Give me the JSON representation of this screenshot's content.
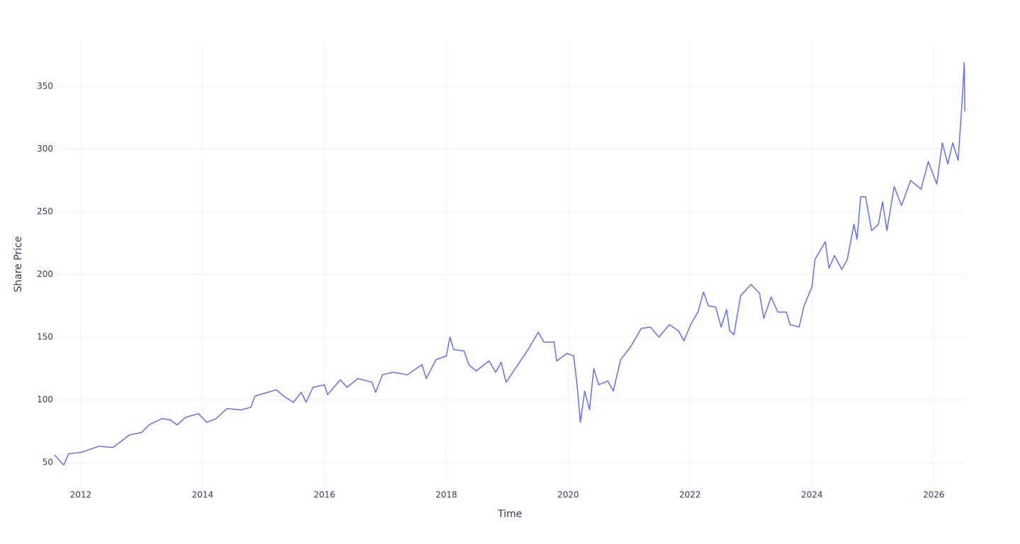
{
  "chart_data": {
    "type": "line",
    "x_label": "Time",
    "y_label": "Share Price",
    "xlim": [
      2011.57,
      2026.52
    ],
    "ylim": [
      30.2,
      386.7
    ],
    "xticks": [
      2012,
      2014,
      2016,
      2018,
      2020,
      2022,
      2024,
      2026
    ],
    "yticks": [
      50,
      100,
      150,
      200,
      250,
      300,
      350
    ],
    "grid": true,
    "series": [
      {
        "color": "#636efa",
        "x": [
          2011.57,
          2011.72,
          2011.8,
          2012.0,
          2012.3,
          2012.53,
          2012.8,
          2013.0,
          2013.12,
          2013.33,
          2013.47,
          2013.58,
          2013.72,
          2013.93,
          2014.07,
          2014.22,
          2014.4,
          2014.63,
          2014.79,
          2014.86,
          2015.21,
          2015.33,
          2015.49,
          2015.62,
          2015.7,
          2015.81,
          2016.0,
          2016.05,
          2016.26,
          2016.37,
          2016.55,
          2016.78,
          2016.84,
          2016.95,
          2017.13,
          2017.36,
          2017.6,
          2017.67,
          2017.83,
          2018.0,
          2018.06,
          2018.12,
          2018.29,
          2018.37,
          2018.49,
          2018.7,
          2018.81,
          2018.9,
          2018.98,
          2019.16,
          2019.34,
          2019.51,
          2019.6,
          2019.77,
          2019.81,
          2019.98,
          2020.09,
          2020.15,
          2020.2,
          2020.27,
          2020.35,
          2020.42,
          2020.5,
          2020.65,
          2020.74,
          2020.86,
          2021.02,
          2021.2,
          2021.35,
          2021.49,
          2021.66,
          2021.81,
          2021.9,
          2022.01,
          2022.13,
          2022.22,
          2022.3,
          2022.42,
          2022.51,
          2022.6,
          2022.65,
          2022.72,
          2022.83,
          2023.0,
          2023.14,
          2023.21,
          2023.33,
          2023.44,
          2023.58,
          2023.64,
          2023.79,
          2023.87,
          2024.0,
          2024.05,
          2024.22,
          2024.28,
          2024.37,
          2024.49,
          2024.58,
          2024.69,
          2024.74,
          2024.8,
          2024.88,
          2024.98,
          2025.09,
          2025.16,
          2025.23,
          2025.35,
          2025.47,
          2025.62,
          2025.79,
          2025.91,
          2026.05,
          2026.14,
          2026.23,
          2026.31,
          2026.4,
          2026.47,
          2026.5,
          2026.51
        ],
        "values": [
          56,
          48,
          57,
          58,
          63,
          62,
          72,
          74,
          80,
          85,
          84,
          80,
          86,
          89,
          82,
          85,
          93,
          92,
          94,
          103,
          108,
          103,
          98,
          106,
          98,
          110,
          112,
          104,
          116,
          110,
          117,
          114,
          106,
          120,
          122,
          120,
          128,
          117,
          132,
          135,
          150,
          140,
          139,
          128,
          123,
          131,
          122,
          130,
          114,
          127,
          140,
          154,
          146,
          146,
          131,
          137,
          135,
          110,
          82,
          107,
          92,
          125,
          112,
          115,
          107,
          132,
          142,
          157,
          158,
          150,
          160,
          155,
          147,
          160,
          170,
          186,
          175,
          174,
          158,
          172,
          155,
          152,
          183,
          192,
          185,
          165,
          182,
          170,
          170,
          160,
          158,
          175,
          190,
          212,
          226,
          205,
          215,
          204,
          212,
          240,
          228,
          262,
          262,
          235,
          240,
          258,
          235,
          270,
          255,
          275,
          268,
          290,
          272,
          305,
          288,
          305,
          291,
          342,
          369,
          330
        ]
      }
    ]
  }
}
